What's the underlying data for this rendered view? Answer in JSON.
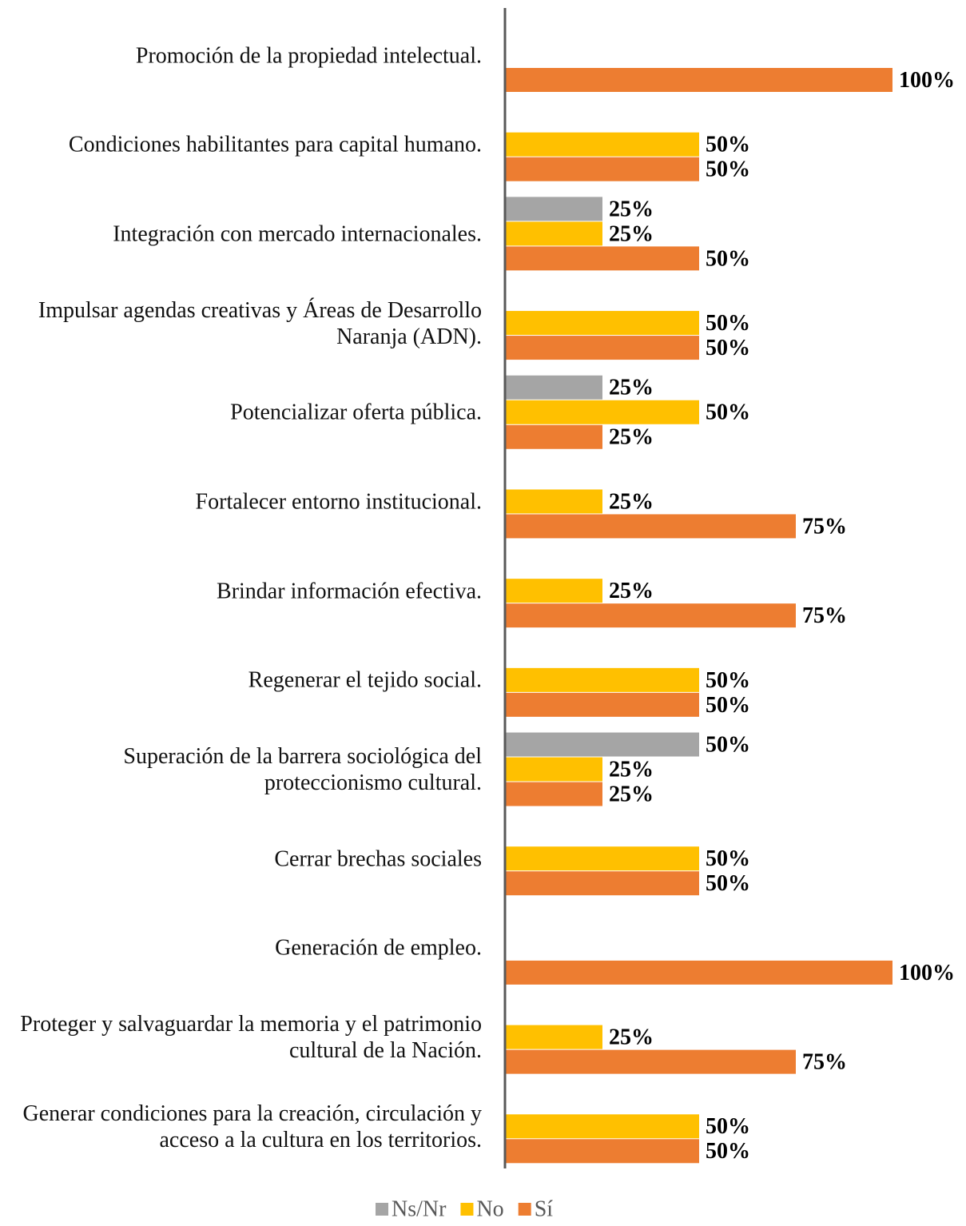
{
  "chart_data": {
    "type": "hbar",
    "categories": [
      "Promoción de la propiedad intelectual.",
      "Condiciones habilitantes para capital humano.",
      "Integración con mercado internacionales.",
      "Impulsar agendas creativas y Áreas de Desarrollo Naranja (ADN).",
      "Potencializar oferta pública.",
      "Fortalecer entorno institucional.",
      "Brindar información efectiva.",
      "Regenerar el tejido social.",
      "Superación de la barrera sociológica del proteccionismo cultural.",
      "Cerrar brechas sociales",
      "Generación de empleo.",
      "Proteger y salvaguardar la memoria y el patrimonio cultural de la Nación.",
      "Generar condiciones para la creación, circulación y acceso a la cultura en los territorios."
    ],
    "series": [
      {
        "name": "Ns/Nr",
        "color": "#a5a5a5",
        "values": [
          null,
          null,
          25,
          null,
          25,
          null,
          null,
          null,
          50,
          null,
          null,
          null,
          null
        ],
        "value_labels": [
          null,
          null,
          "25%",
          null,
          "25%",
          null,
          null,
          null,
          "50%",
          null,
          null,
          null,
          null
        ]
      },
      {
        "name": "No",
        "color": "#ffc000",
        "values": [
          null,
          50,
          25,
          50,
          50,
          25,
          25,
          50,
          25,
          50,
          null,
          25,
          50
        ],
        "value_labels": [
          null,
          "50%",
          "25%",
          "50%",
          "50%",
          "25%",
          "25%",
          "50%",
          "25%",
          "50%",
          null,
          "25%",
          "50%"
        ]
      },
      {
        "name": "Sí",
        "color": "#ed7d31",
        "values": [
          100,
          50,
          50,
          50,
          25,
          75,
          75,
          50,
          25,
          50,
          100,
          75,
          50
        ],
        "value_labels": [
          "100%",
          "50%",
          "50%",
          "50%",
          "25%",
          "75%",
          "75%",
          "50%",
          "25%",
          "50%",
          "100%",
          "75%",
          "50%"
        ]
      }
    ],
    "legend": "bottom"
  }
}
